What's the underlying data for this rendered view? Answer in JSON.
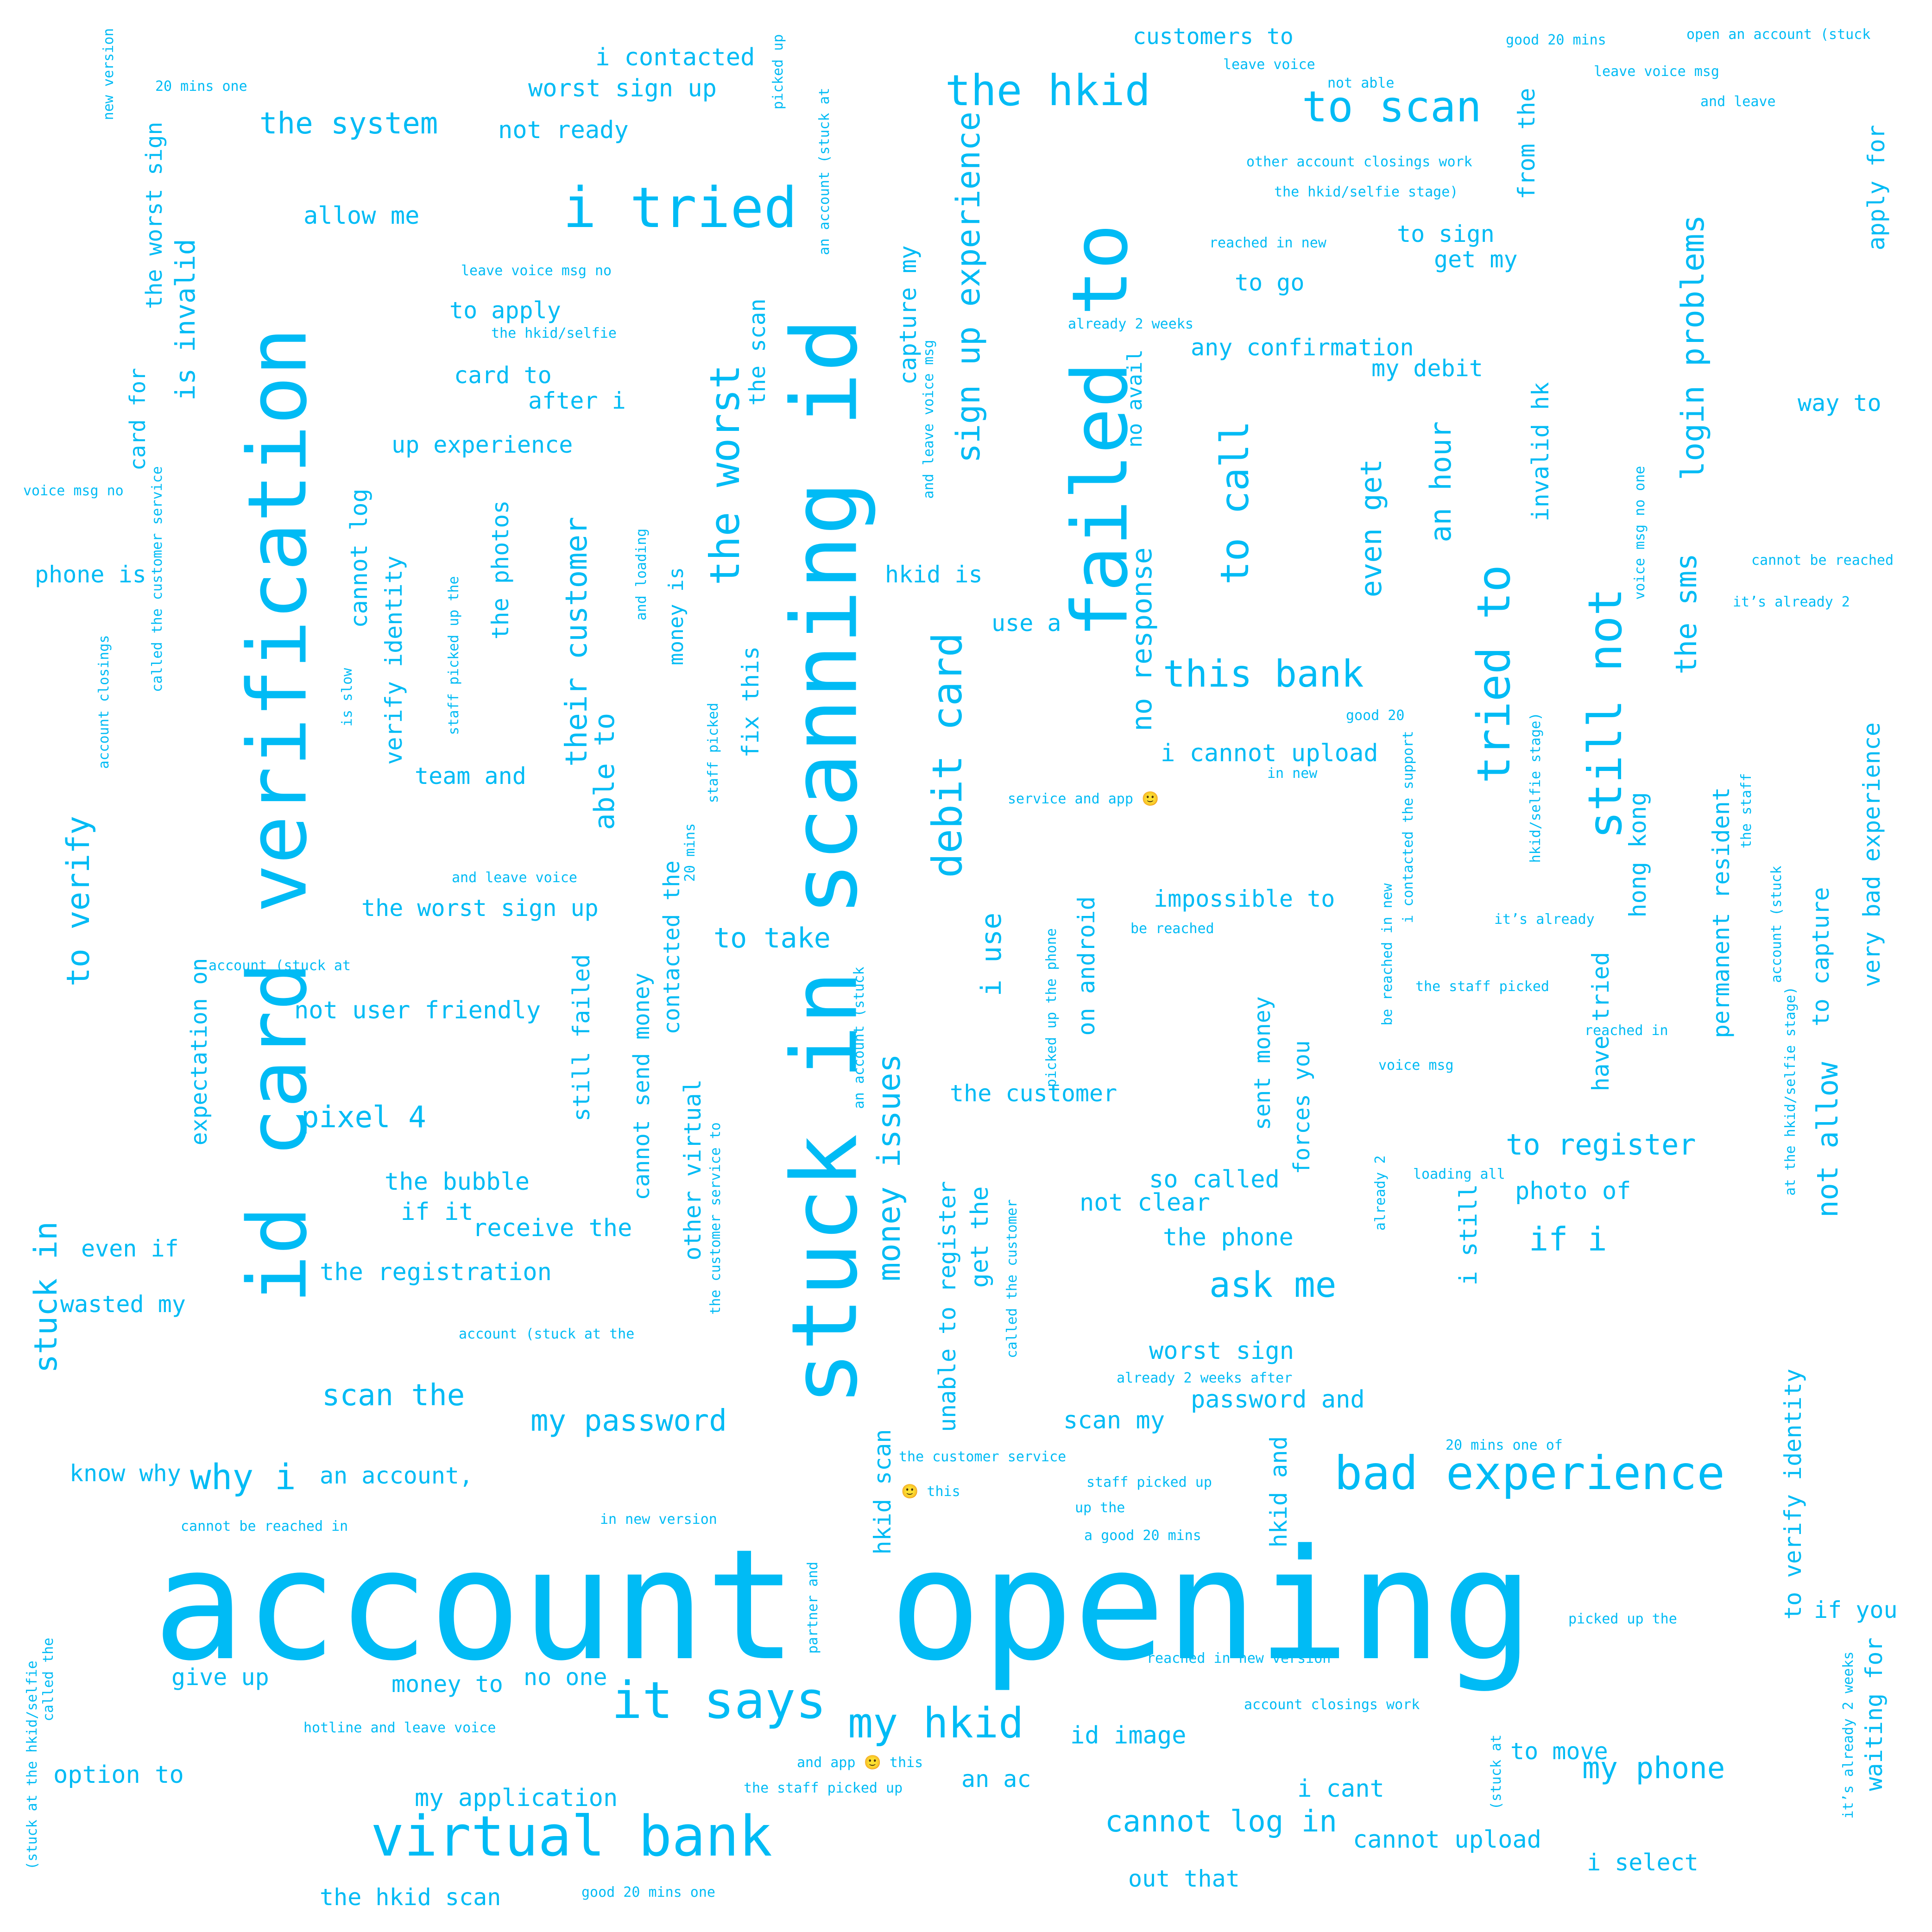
{
  "style": {
    "word_color": "#00bbf5",
    "background": "#ffffff"
  },
  "words": [
    "account opening",
    "stuck in scanning id",
    "id card verification",
    "failed to",
    "i tried",
    "the hkid",
    "to scan",
    "the worst",
    "debit card",
    "the system",
    "worst sign up",
    "i contacted",
    "not ready",
    "allow me",
    "sign up experience",
    "capture my",
    "login problems",
    "still not",
    "tried to",
    "this bank",
    "to call",
    "an hour",
    "even get",
    "the sms",
    "is invalid",
    "the worst sign",
    "card for",
    "to apply",
    "card to",
    "after i",
    "up experience",
    "phone is",
    "to verify",
    "verify identity",
    "cannot log",
    "the photos",
    "their customer",
    "able to",
    "money is",
    "hkid is",
    "fix this",
    "use a",
    "no response",
    "i cannot upload",
    "no avail",
    "any confirmation",
    "my debit",
    "to sign",
    "get my",
    "to go",
    "way to",
    "apply for",
    "from the",
    "invalid hk",
    "team and",
    "the worst sign up",
    "to take",
    "i use",
    "on android",
    "impossible to",
    "hong kong",
    "permanent resident",
    "very bad experience",
    "to capture",
    "not allow",
    "have tried",
    "not user friendly",
    "pixel 4",
    "expectation on",
    "still failed",
    "cannot send money",
    "contacted the",
    "money issues",
    "the customer",
    "sent money",
    "forces you",
    "to register",
    "photo of",
    "so called",
    "not clear",
    "the phone",
    "if i",
    "ask me",
    "i still",
    "get the",
    "unable to register",
    "other virtual",
    "the bubble",
    "if it",
    "receive the",
    "even if",
    "stuck in",
    "wasted my",
    "the registration",
    "scan the",
    "my password",
    "scan my",
    "worst sign",
    "password and",
    "bad experience",
    "why i",
    "know why",
    "an account,",
    "hkid scan",
    "hkid and",
    "to verify identity",
    "if you",
    "waiting for",
    "it says",
    "my hkid",
    "virtual bank",
    "give up",
    "money to",
    "no one",
    "option to",
    "my application",
    "an ac",
    "id image",
    "cannot log in",
    "cannot upload",
    "i cant",
    "my phone",
    "to move",
    "out that",
    "i select",
    "the hkid scan",
    "customers to",
    "good 20 mins",
    "open an account (stuck",
    "leave voice",
    "not able",
    "leave voice msg",
    "and leave",
    "other account closings work",
    "the hkid/selfie stage)",
    "reached in new",
    "already 2 weeks",
    "leave voice msg no",
    "the hkid/selfie",
    "20 mins one",
    "new version",
    "picked up",
    "an account (stuck at",
    "and leave voice msg",
    "voice msg no",
    "called the customer service",
    "account closings",
    "is slow",
    "staff picked up the",
    "and loading",
    "staff picked",
    "20 mins",
    "the scan",
    "cannot be reached",
    "it’s already 2",
    "voice msg no one",
    "good 20",
    "in new",
    "service and app 🙂",
    "be reached",
    "it’s already",
    "hkid/selfie stage)",
    "i contacted the support",
    "be reached in new",
    "the staff picked",
    "reached in",
    "voice msg",
    "the staff",
    "account (stuck",
    "at the hkid/selfie stage)",
    "loading all",
    "already 2",
    "called the customer",
    "picked up the phone",
    "an account (stuck",
    "the customer service to",
    "and leave voice",
    "account (stuck at",
    "account (stuck at the",
    "already 2 weeks after",
    "20 mins one of",
    "the customer service",
    "🙂 this",
    "staff picked up",
    "up the",
    "a good 20 mins",
    "cannot be reached in",
    "in new version",
    "picked up the",
    "reached in new version",
    "account closings work",
    "partner and",
    "it’s already 2 weeks",
    "hotline and leave voice",
    "and app 🙂 this",
    "the staff picked up",
    "(stuck at the hkid/selfie",
    "called the",
    "(stuck at",
    "good 20 mins one"
  ]
}
